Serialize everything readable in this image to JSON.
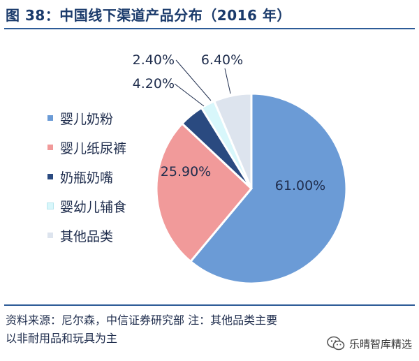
{
  "title": "图 38：中国线下渠道产品分布（2016 年）",
  "chart_data": {
    "type": "pie",
    "title": "图 38：中国线下渠道产品分布（2016 年）",
    "start_angle_deg": 0,
    "direction": "clockwise",
    "legend_position": "left",
    "slices": [
      {
        "label": "婴儿奶粉",
        "value": 61.0,
        "value_label": "61.00%",
        "color": "#6b9bd6"
      },
      {
        "label": "婴儿纸尿裤",
        "value": 25.9,
        "value_label": "25.90%",
        "color": "#f19a9a"
      },
      {
        "label": "奶瓶奶嘴",
        "value": 4.2,
        "value_label": "4.20%",
        "color": "#2a4a80"
      },
      {
        "label": "婴幼儿辅食",
        "value": 2.4,
        "value_label": "2.40%",
        "color": "#d8f7fb"
      },
      {
        "label": "其他品类",
        "value": 6.4,
        "value_label": "6.40%",
        "color": "#dde4ee"
      }
    ]
  },
  "footer": {
    "note_line1": "资料来源：尼尔森，中信证券研究部  注：其他品类主要",
    "note_line2": "以非耐用品和玩具为主",
    "watermark": "乐晴智库精选",
    "watermark_icon": "wechat-icon"
  }
}
